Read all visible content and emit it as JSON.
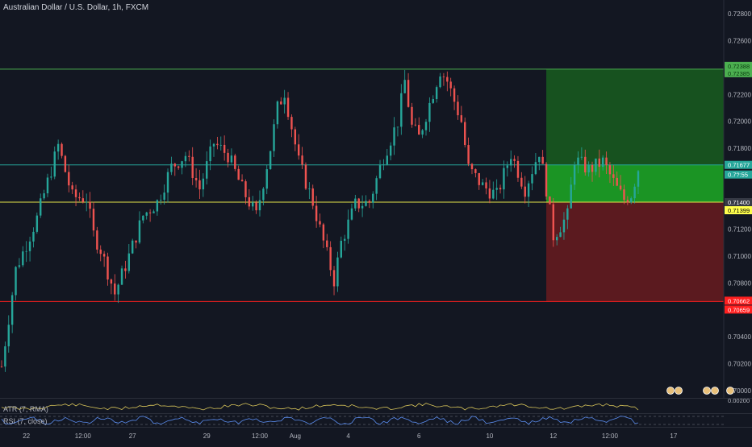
{
  "header": {
    "title": "Australian Dollar / U.S. Dollar, 1h, FXCM"
  },
  "indicators": {
    "atr_label": "ATR (7, RMA)",
    "rsi_label": "RSI (7, close)",
    "atr_value": "0.00200"
  },
  "colors": {
    "background": "#131722",
    "up_candle": "#26a69a",
    "down_candle": "#ef5350",
    "profit_zone": "#1b7a2a",
    "profit_zone_light": "#16a30f",
    "loss_zone": "#5b1a1f",
    "target_line": "#4caf50",
    "stop_line": "#ff1f1f",
    "entry_line": "#e6e64a",
    "mid_line": "#26a69a",
    "atr_line": "#d8c55a",
    "rsi_line": "#5b8def"
  },
  "chart_data": {
    "type": "candlestick",
    "title": "Australian Dollar / U.S. Dollar, 1h, FXCM",
    "y_axis": {
      "ticks": [
        "0.72800",
        "0.72600",
        "0.72400",
        "0.72200",
        "0.72000",
        "0.71800",
        "0.71600",
        "0.71400",
        "0.71200",
        "0.71000",
        "0.70800",
        "0.70600",
        "0.70400",
        "0.70200",
        "0.70000"
      ],
      "tick_values": [
        0.728,
        0.726,
        0.724,
        0.722,
        0.72,
        0.718,
        0.716,
        0.714,
        0.712,
        0.71,
        0.708,
        0.706,
        0.704,
        0.702,
        0.7
      ],
      "range": [
        0.6994,
        0.7294
      ]
    },
    "x_axis": {
      "tick_labels": [
        "22",
        "12:00",
        "27",
        "29",
        "12:00",
        "Aug",
        "4",
        "6",
        "10",
        "12",
        "12:00",
        "17"
      ],
      "tick_index": [
        7,
        23,
        37,
        58,
        73,
        83,
        98,
        118,
        138,
        156,
        172,
        190
      ]
    },
    "levels": [
      {
        "label": "0.72388",
        "value": 0.72388,
        "color": "#4caf50",
        "text_color": "#0a3d10",
        "box_color": "#4caf50"
      },
      {
        "label": "0.72385",
        "value": 0.72385,
        "color": "#4caf50",
        "text_color": "#0a3d10",
        "box_color": "#4caf50"
      },
      {
        "label": "0.71677",
        "value": 0.71677,
        "color": "#26a69a",
        "text_color": "#ffffff",
        "box_color": "#26a69a"
      },
      {
        "label": "0.7?:55",
        "value": 0.71575,
        "color": "#26a69a",
        "text_color": "#ffffff",
        "box_color": "#26a69a"
      },
      {
        "label": "0.71400",
        "value": 0.714,
        "color": "#e6e64a",
        "text_color": "#ffffff",
        "box_color": "#363a45"
      },
      {
        "label": "0.71399",
        "value": 0.71399,
        "color": "#e6e64a",
        "text_color": "#000000",
        "box_color": "#ffff4d"
      },
      {
        "label": "0.70662",
        "value": 0.70662,
        "color": "#ff1f1f",
        "text_color": "#ffffff",
        "box_color": "#ff1f1f"
      },
      {
        "label": "0.70659",
        "value": 0.70659,
        "color": "#ff1f1f",
        "text_color": "#ffffff",
        "box_color": "#ff1f1f"
      }
    ],
    "position": {
      "entry": 0.714,
      "target": 0.72388,
      "stop": 0.70662,
      "start_index": 154
    },
    "price_path": [
      [
        0,
        0.7018
      ],
      [
        4,
        0.709
      ],
      [
        10,
        0.7128
      ],
      [
        16,
        0.7182
      ],
      [
        20,
        0.7144
      ],
      [
        24,
        0.7143
      ],
      [
        26,
        0.7116
      ],
      [
        28,
        0.7105
      ],
      [
        32,
        0.7072
      ],
      [
        36,
        0.71
      ],
      [
        40,
        0.713
      ],
      [
        44,
        0.714
      ],
      [
        48,
        0.7166
      ],
      [
        52,
        0.7175
      ],
      [
        56,
        0.715
      ],
      [
        60,
        0.7184
      ],
      [
        64,
        0.7175
      ],
      [
        68,
        0.715
      ],
      [
        72,
        0.713
      ],
      [
        76,
        0.718
      ],
      [
        78,
        0.721
      ],
      [
        80,
        0.7222
      ],
      [
        84,
        0.717
      ],
      [
        88,
        0.714
      ],
      [
        90,
        0.712
      ],
      [
        94,
        0.7082
      ],
      [
        96,
        0.711
      ],
      [
        100,
        0.7138
      ],
      [
        104,
        0.714
      ],
      [
        108,
        0.7174
      ],
      [
        112,
        0.72
      ],
      [
        114,
        0.723
      ],
      [
        116,
        0.7196
      ],
      [
        118,
        0.7188
      ],
      [
        120,
        0.7205
      ],
      [
        124,
        0.7238
      ],
      [
        126,
        0.723
      ],
      [
        130,
        0.72
      ],
      [
        132,
        0.7165
      ],
      [
        136,
        0.7152
      ],
      [
        140,
        0.7145
      ],
      [
        144,
        0.7176
      ],
      [
        148,
        0.715
      ],
      [
        152,
        0.7178
      ],
      [
        154,
        0.715
      ],
      [
        156,
        0.7115
      ],
      [
        160,
        0.713
      ],
      [
        162,
        0.7172
      ],
      [
        166,
        0.7164
      ],
      [
        170,
        0.717
      ],
      [
        174,
        0.715
      ],
      [
        176,
        0.7142
      ],
      [
        178,
        0.7146
      ],
      [
        180,
        0.7165
      ]
    ],
    "candle_count": 181,
    "atr_panel": {
      "label": "ATR (7, RMA)",
      "value": "0.00200"
    },
    "rsi_panel": {
      "label": "RSI (7, close)"
    }
  }
}
